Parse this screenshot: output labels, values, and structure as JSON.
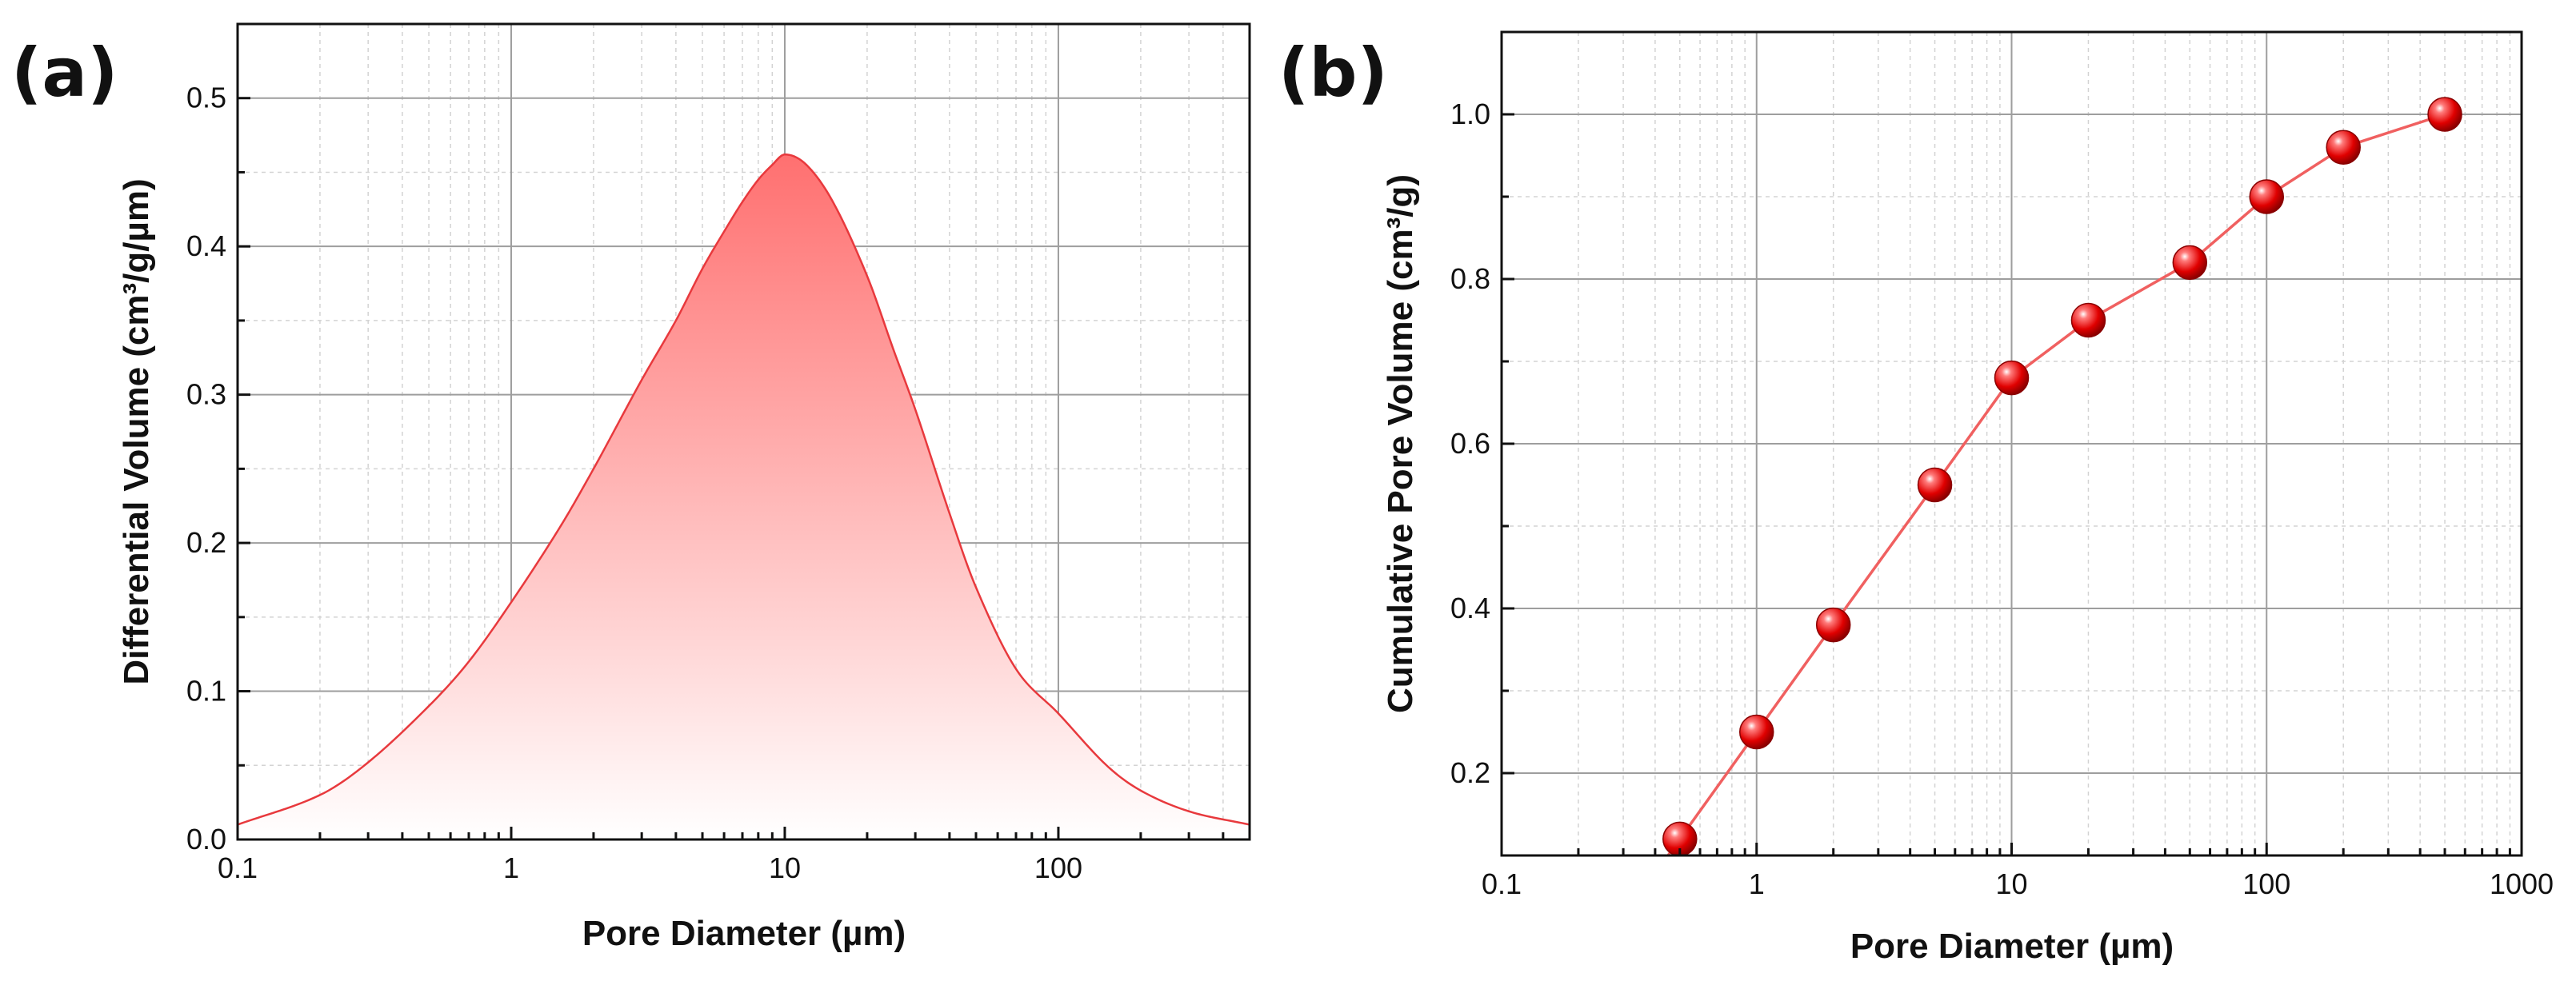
{
  "chart_data": [
    {
      "type": "area",
      "panel_label": "(a)",
      "xlabel": "Pore Diameter (µm)",
      "ylabel": "Differential Volume (cm³/g/µm)",
      "xscale": "log",
      "xlim": [
        0.1,
        500
      ],
      "ylim": [
        0,
        0.55
      ],
      "xticks": [
        0.1,
        1,
        10,
        100
      ],
      "xtick_labels": [
        "0.1",
        "1",
        "10",
        "100"
      ],
      "yticks": [
        0,
        0.1,
        0.2,
        0.3,
        0.4,
        0.5
      ],
      "ytick_labels": [
        "0.0",
        "0.1",
        "0.2",
        "0.3",
        "0.4",
        "0.5"
      ],
      "grid": true,
      "color": "#e8393d",
      "fill_gradient": [
        "#ff7070",
        "#ffffff"
      ],
      "series": [
        {
          "x": [
            0.1,
            0.2,
            0.3,
            0.5,
            0.7,
            1,
            1.5,
            2,
            3,
            4,
            5,
            6,
            7,
            8,
            9,
            10,
            12,
            15,
            20,
            25,
            30,
            40,
            50,
            70,
            100,
            150,
            200,
            300,
            500
          ],
          "y": [
            0.01,
            0.03,
            0.052,
            0.09,
            0.12,
            0.16,
            0.21,
            0.25,
            0.31,
            0.35,
            0.385,
            0.41,
            0.43,
            0.445,
            0.455,
            0.462,
            0.455,
            0.43,
            0.38,
            0.33,
            0.29,
            0.22,
            0.17,
            0.115,
            0.085,
            0.05,
            0.033,
            0.019,
            0.01
          ]
        }
      ]
    },
    {
      "type": "line",
      "panel_label": "(b)",
      "xlabel": "Pore Diameter (µm)",
      "ylabel": "Cumulative Pore Volume (cm³/g)",
      "xscale": "log",
      "xlim": [
        0.1,
        1000
      ],
      "ylim": [
        0.1,
        1.1
      ],
      "xticks": [
        0.1,
        1,
        10,
        100,
        1000
      ],
      "xtick_labels": [
        "0.1",
        "1",
        "10",
        "100",
        "1000"
      ],
      "yticks": [
        0.2,
        0.4,
        0.6,
        0.8,
        1.0
      ],
      "ytick_labels": [
        "0.2",
        "0.4",
        "0.6",
        "0.8",
        "1.0"
      ],
      "grid": true,
      "color": "#d40000",
      "line_color": "#f06060",
      "series": [
        {
          "x": [
            0.5,
            1,
            2,
            5,
            10,
            20,
            50,
            100,
            200,
            500
          ],
          "y": [
            0.12,
            0.25,
            0.38,
            0.55,
            0.68,
            0.75,
            0.82,
            0.9,
            0.96,
            1.0
          ]
        }
      ]
    }
  ]
}
